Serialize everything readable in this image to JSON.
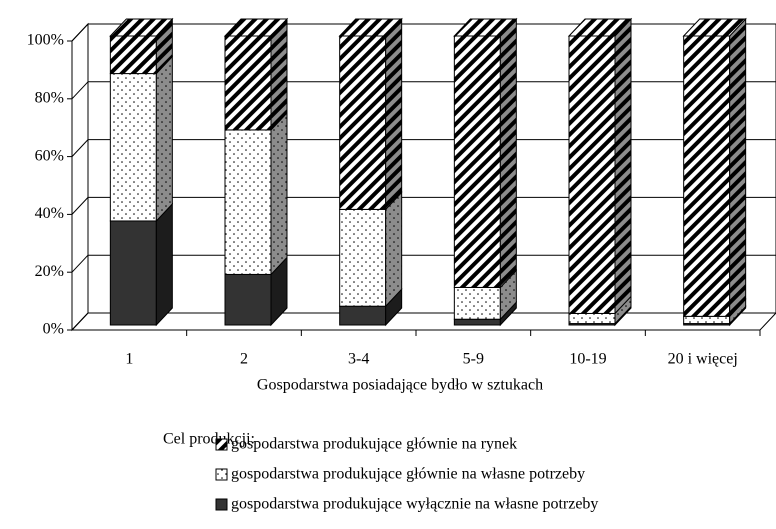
{
  "chart_data": {
    "type": "stacked_bar_3d",
    "xlabel": "Gospodarstwa posiadające bydło w sztukach",
    "legend_title": "Cel produkcji:",
    "categories": [
      "1",
      "2",
      "3-4",
      "5-9",
      "10-19",
      "20 i więcej"
    ],
    "series": [
      {
        "name": "gospodarstwa produkujące wyłącznie na własne potrzeby",
        "color": "#333333",
        "values": [
          36,
          17.5,
          6.5,
          2,
          0.5,
          0.5
        ]
      },
      {
        "name": "gospodarstwa produkujące głównie na własne potrzeby",
        "color": "dots",
        "values": [
          51,
          50,
          33.5,
          11,
          3.5,
          2.5
        ]
      },
      {
        "name": "gospodarstwa produkujące głównie na rynek",
        "color": "stripes",
        "values": [
          13,
          32.5,
          60,
          87,
          96,
          97
        ]
      }
    ],
    "ylim": [
      0,
      100
    ],
    "yticks": [
      {
        "value": 0,
        "label": "0%"
      },
      {
        "value": 20,
        "label": "20%"
      },
      {
        "value": 40,
        "label": "40%"
      },
      {
        "value": 60,
        "label": "60%"
      },
      {
        "value": 80,
        "label": "80%"
      },
      {
        "value": 100,
        "label": "100%"
      }
    ],
    "grid": true
  }
}
